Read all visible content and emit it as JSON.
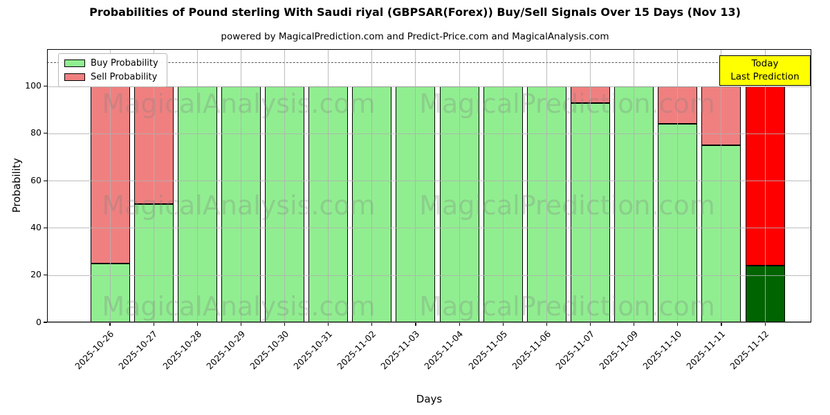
{
  "chart": {
    "title": "Probabilities of Pound sterling With Saudi riyal (GBPSAR(Forex)) Buy/Sell Signals Over 15 Days (Nov 13)",
    "subtitle": "powered by MagicalPrediction.com and Predict-Price.com and MagicalAnalysis.com",
    "xlabel": "Days",
    "ylabel": "Probability",
    "legend": [
      {
        "label": "Buy Probability",
        "color": "#90ee90"
      },
      {
        "label": "Sell Probability",
        "color": "#f08080"
      }
    ],
    "annotation": {
      "line1": "Today",
      "line2": "Last Prediction",
      "bg": "#ffff00",
      "border": "#000000"
    },
    "watermarks": [
      "MagicalAnalysis.com",
      "MagicalPrediction.com"
    ]
  },
  "chart_data": {
    "type": "bar",
    "stacked": true,
    "title": "Probabilities of Pound sterling With Saudi riyal (GBPSAR(Forex)) Buy/Sell Signals Over 15 Days (Nov 13)",
    "xlabel": "Days",
    "ylabel": "Probability",
    "categories": [
      "2025-10-26",
      "2025-10-27",
      "2025-10-28",
      "2025-10-29",
      "2025-10-30",
      "2025-10-31",
      "2025-11-02",
      "2025-11-03",
      "2025-11-04",
      "2025-11-05",
      "2025-11-06",
      "2025-11-07",
      "2025-11-09",
      "2025-11-10",
      "2025-11-11",
      "2025-11-12"
    ],
    "series": [
      {
        "name": "Buy Probability",
        "color": "#90ee90",
        "today_color": "#006400",
        "values": [
          25,
          50,
          100,
          100,
          100,
          100,
          100,
          100,
          100,
          100,
          100,
          93,
          100,
          84,
          75,
          24
        ]
      },
      {
        "name": "Sell Probability",
        "color": "#f08080",
        "today_color": "#ff0000",
        "values": [
          75,
          50,
          0,
          0,
          0,
          0,
          0,
          0,
          0,
          0,
          0,
          7,
          0,
          16,
          25,
          76
        ]
      }
    ],
    "today_index": 15,
    "yticks": [
      0,
      20,
      40,
      60,
      80,
      100
    ],
    "ylim": [
      0,
      115.7
    ],
    "threshold_line": {
      "y": 110,
      "style": "dashed",
      "color": "#555555"
    },
    "grid": true,
    "legend_position": "upper left",
    "bar_edge_color": "#000000"
  }
}
